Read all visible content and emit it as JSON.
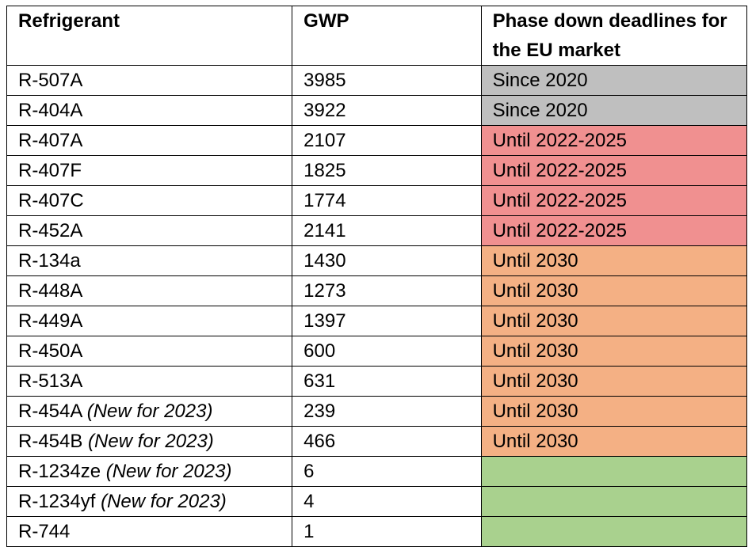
{
  "table": {
    "headers": {
      "refrigerant": "Refrigerant",
      "gwp": "GWP",
      "phase": "Phase down deadlines for the EU market"
    },
    "colors": {
      "gray": "#bfbfbf",
      "red": "#f09090",
      "orange": "#f4b084",
      "green": "#a9d18e"
    },
    "rows": [
      {
        "name": "R-507A",
        "note": "",
        "gwp": "3985",
        "phase": "Since 2020",
        "color": "gray"
      },
      {
        "name": "R-404A",
        "note": "",
        "gwp": "3922",
        "phase": "Since 2020",
        "color": "gray"
      },
      {
        "name": "R-407A",
        "note": "",
        "gwp": "2107",
        "phase": "Until 2022-2025",
        "color": "red"
      },
      {
        "name": "R-407F",
        "note": "",
        "gwp": "1825",
        "phase": "Until 2022-2025",
        "color": "red"
      },
      {
        "name": "R-407C",
        "note": "",
        "gwp": "1774",
        "phase": "Until 2022-2025",
        "color": "red"
      },
      {
        "name": "R-452A",
        "note": "",
        "gwp": "2141",
        "phase": "Until 2022-2025",
        "color": "red"
      },
      {
        "name": "R-134a",
        "note": "",
        "gwp": "1430",
        "phase": "Until 2030",
        "color": "orange"
      },
      {
        "name": "R-448A",
        "note": "",
        "gwp": "1273",
        "phase": "Until 2030",
        "color": "orange"
      },
      {
        "name": "R-449A",
        "note": "",
        "gwp": "1397",
        "phase": "Until 2030",
        "color": "orange"
      },
      {
        "name": "R-450A",
        "note": "",
        "gwp": "600",
        "phase": "Until 2030",
        "color": "orange"
      },
      {
        "name": "R-513A",
        "note": "",
        "gwp": "631",
        "phase": "Until 2030",
        "color": "orange"
      },
      {
        "name": "R-454A ",
        "note": "(New for 2023)",
        "gwp": "239",
        "phase": "Until 2030",
        "color": "orange"
      },
      {
        "name": "R-454B  ",
        "note": "(New for 2023)",
        "gwp": "466",
        "phase": "Until 2030",
        "color": "orange"
      },
      {
        "name": "R-1234ze  ",
        "note": "(New for 2023)",
        "gwp": "6",
        "phase": "",
        "color": "green"
      },
      {
        "name": "R-1234yf   ",
        "note": "(New for 2023)",
        "gwp": "4",
        "phase": "",
        "color": "green"
      },
      {
        "name": "R-744",
        "note": "",
        "gwp": "1",
        "phase": "",
        "color": "green"
      }
    ]
  }
}
